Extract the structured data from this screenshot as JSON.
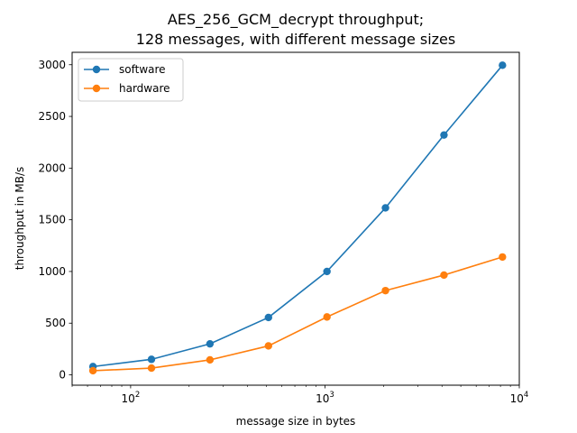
{
  "chart_data": {
    "type": "line",
    "title_lines": [
      "AES_256_GCM_decrypt throughput;",
      "128 messages, with different message sizes"
    ],
    "xlabel": "message size in bytes",
    "ylabel": "throughput in MB/s",
    "x_scale": "log",
    "x_ticks": [
      {
        "value": 100,
        "base": "10",
        "exp": "2"
      },
      {
        "value": 1000,
        "base": "10",
        "exp": "3"
      },
      {
        "value": 10000,
        "base": "10",
        "exp": "4"
      }
    ],
    "xlim": [
      50,
      10000
    ],
    "ylim": [
      -100,
      3120
    ],
    "y_ticks": [
      0,
      500,
      1000,
      1500,
      2000,
      2500,
      3000
    ],
    "grid": false,
    "legend_position": "top-left",
    "x": [
      64,
      128,
      256,
      512,
      1024,
      2048,
      4096,
      8192
    ],
    "series": [
      {
        "name": "software",
        "color": "#1f77b4",
        "values": [
          80,
          150,
          300,
          555,
          1000,
          1615,
          2320,
          2995
        ]
      },
      {
        "name": "hardware",
        "color": "#ff7f0e",
        "values": [
          40,
          65,
          145,
          280,
          560,
          815,
          965,
          1140
        ]
      }
    ]
  }
}
